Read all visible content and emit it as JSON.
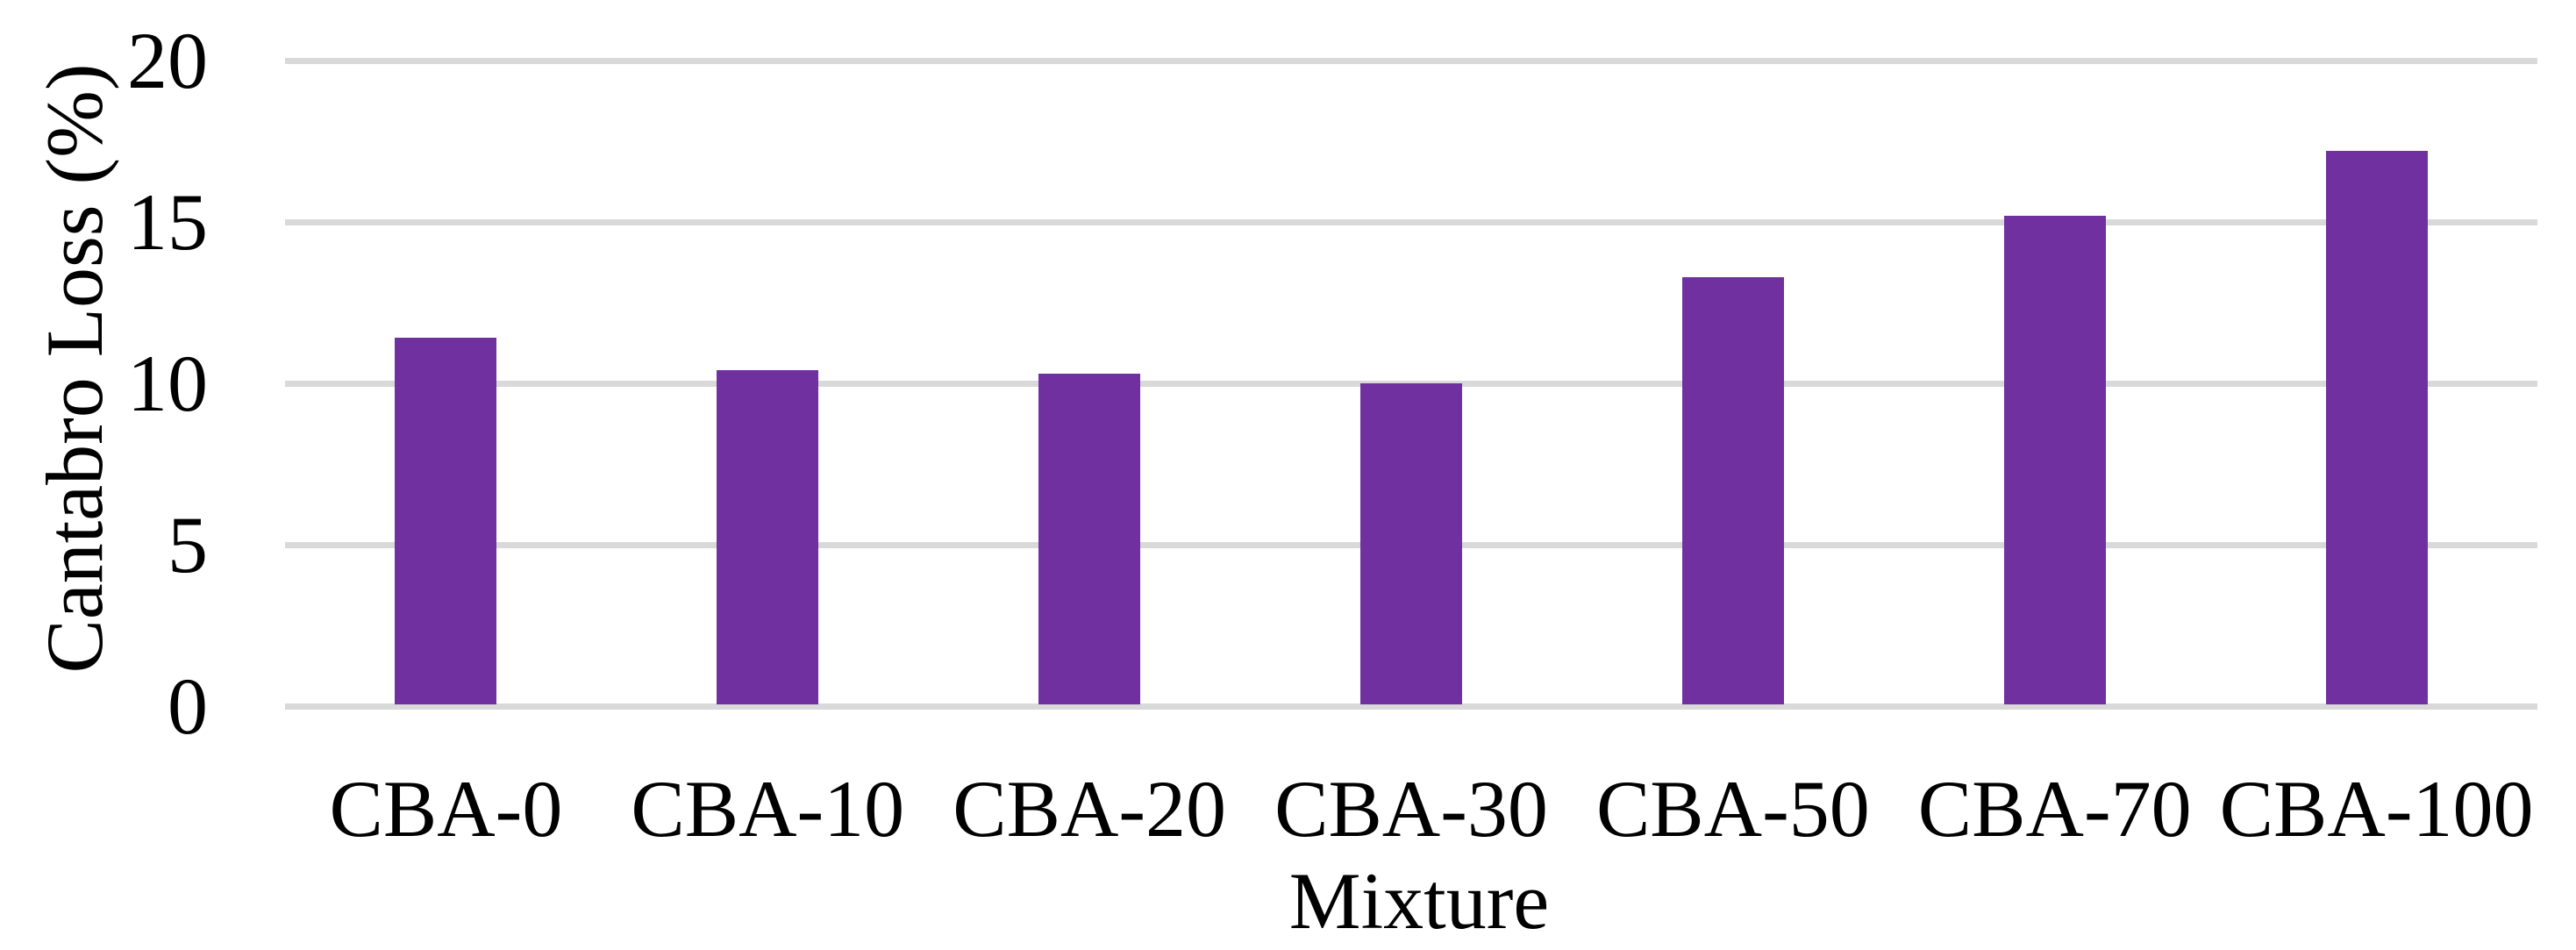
{
  "chart_data": {
    "type": "bar",
    "title": "",
    "xlabel": "Mixture",
    "ylabel": "Cantabro Loss (%)",
    "categories": [
      "CBA-0",
      "CBA-10",
      "CBA-20",
      "CBA-30",
      "CBA-50",
      "CBA-70",
      "CBA-100"
    ],
    "values": [
      11.4,
      10.4,
      10.3,
      10.0,
      13.3,
      15.2,
      17.2
    ],
    "y_ticks": [
      0,
      5,
      10,
      15,
      20
    ],
    "ylim": [
      0,
      20
    ],
    "grid": "horizontal-only",
    "legend": "none",
    "colors": {
      "bar": "#7030a0",
      "gridline": "#d9d9d9",
      "text": "#000000",
      "background": "#ffffff"
    }
  }
}
